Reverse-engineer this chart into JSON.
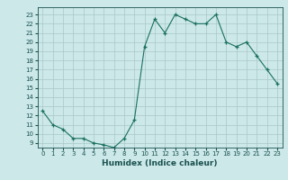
{
  "x": [
    0,
    1,
    2,
    3,
    4,
    5,
    6,
    7,
    8,
    9,
    10,
    11,
    12,
    13,
    14,
    15,
    16,
    17,
    18,
    19,
    20,
    21,
    22,
    23
  ],
  "y": [
    12.5,
    11.0,
    10.5,
    9.5,
    9.5,
    9.0,
    8.8,
    8.5,
    9.5,
    11.5,
    19.5,
    22.5,
    21.0,
    23.0,
    22.5,
    22.0,
    22.0,
    23.0,
    20.0,
    19.5,
    20.0,
    18.5,
    17.0,
    15.5
  ],
  "xlabel": "Humidex (Indice chaleur)",
  "xlim": [
    -0.5,
    23.5
  ],
  "ylim": [
    8.5,
    23.8
  ],
  "yticks": [
    9,
    10,
    11,
    12,
    13,
    14,
    15,
    16,
    17,
    18,
    19,
    20,
    21,
    22,
    23
  ],
  "xticks": [
    0,
    1,
    2,
    3,
    4,
    5,
    6,
    7,
    8,
    9,
    10,
    11,
    12,
    13,
    14,
    15,
    16,
    17,
    18,
    19,
    20,
    21,
    22,
    23
  ],
  "line_color": "#1a7060",
  "bg_color": "#cce8e8",
  "grid_color": "#aac8c8",
  "tick_label_color": "#1a5050",
  "axis_label_color": "#1a5050"
}
